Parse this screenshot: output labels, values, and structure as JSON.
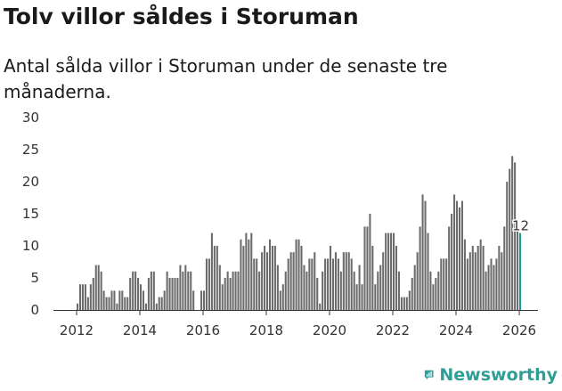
{
  "title": "Tolv villor såldes i Storuman",
  "subtitle": "Antal sålda villor i Storuman under de senaste tre månaderna.",
  "brand": {
    "name": "Newsworthy",
    "color": "#2f9e96"
  },
  "colors": {
    "bar": "#6b6b6b",
    "highlight": "#159f96",
    "axis": "#333333"
  },
  "chart_data": {
    "type": "bar",
    "title": "Tolv villor såldes i Storuman",
    "xlabel": "",
    "ylabel": "",
    "x_start": "2011-12",
    "ylim": [
      0,
      30
    ],
    "yticks": [
      0,
      5,
      10,
      15,
      20,
      25,
      30
    ],
    "xticks": [
      2012,
      2014,
      2016,
      2018,
      2020,
      2022,
      2024,
      2026
    ],
    "grid": false,
    "values": [
      0,
      1,
      4,
      4,
      4,
      2,
      4,
      5,
      7,
      7,
      6,
      3,
      2,
      2,
      3,
      3,
      1,
      3,
      3,
      2,
      2,
      5,
      6,
      6,
      5,
      4,
      3,
      1,
      5,
      6,
      6,
      1,
      2,
      2,
      3,
      6,
      5,
      5,
      5,
      5,
      7,
      6,
      7,
      6,
      6,
      3,
      0,
      0,
      3,
      3,
      8,
      8,
      12,
      10,
      10,
      7,
      4,
      5,
      6,
      5,
      6,
      6,
      6,
      11,
      10,
      12,
      11,
      12,
      8,
      8,
      6,
      9,
      10,
      9,
      11,
      10,
      10,
      7,
      3,
      4,
      6,
      8,
      9,
      9,
      11,
      11,
      10,
      7,
      6,
      8,
      8,
      9,
      5,
      1,
      6,
      8,
      8,
      10,
      8,
      9,
      8,
      6,
      9,
      9,
      9,
      8,
      6,
      4,
      7,
      4,
      13,
      13,
      15,
      10,
      4,
      6,
      7,
      9,
      12,
      12,
      12,
      12,
      10,
      6,
      2,
      2,
      2,
      3,
      5,
      7,
      9,
      13,
      18,
      17,
      12,
      6,
      4,
      5,
      6,
      8,
      8,
      8,
      13,
      15,
      18,
      17,
      16,
      17,
      11,
      8,
      9,
      10,
      9,
      10,
      11,
      10,
      6,
      7,
      8,
      7,
      8,
      10,
      9,
      13,
      20,
      22,
      24,
      23,
      14,
      12
    ],
    "highlight_label": "12"
  }
}
